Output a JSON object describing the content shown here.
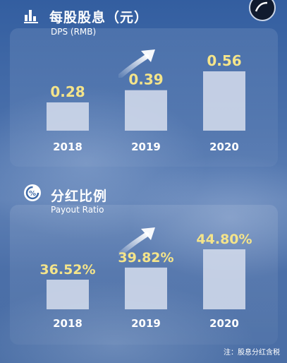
{
  "dps": {
    "title": "每股股息（元）",
    "subtitle": "DPS (RMB)"
  },
  "payout": {
    "title": "分红比例",
    "subtitle": "Payout Ratio"
  },
  "note": "注：股息分红含税",
  "colors": {
    "value_text": "#f4e48a",
    "bar_fill": "#cfd8ea",
    "label_text": "#ffffff"
  },
  "chart_data": [
    {
      "type": "bar",
      "title": "每股股息（元）",
      "subtitle": "DPS (RMB)",
      "categories": [
        "2018",
        "2019",
        "2020"
      ],
      "values": [
        0.28,
        0.39,
        0.56
      ],
      "value_labels": [
        "0.28",
        "0.39",
        "0.56"
      ]
    },
    {
      "type": "bar",
      "title": "分红比例",
      "subtitle": "Payout Ratio",
      "categories": [
        "2018",
        "2019",
        "2020"
      ],
      "values": [
        36.52,
        39.82,
        44.8
      ],
      "value_labels": [
        "36.52%",
        "39.82%",
        "44.80%"
      ]
    }
  ]
}
